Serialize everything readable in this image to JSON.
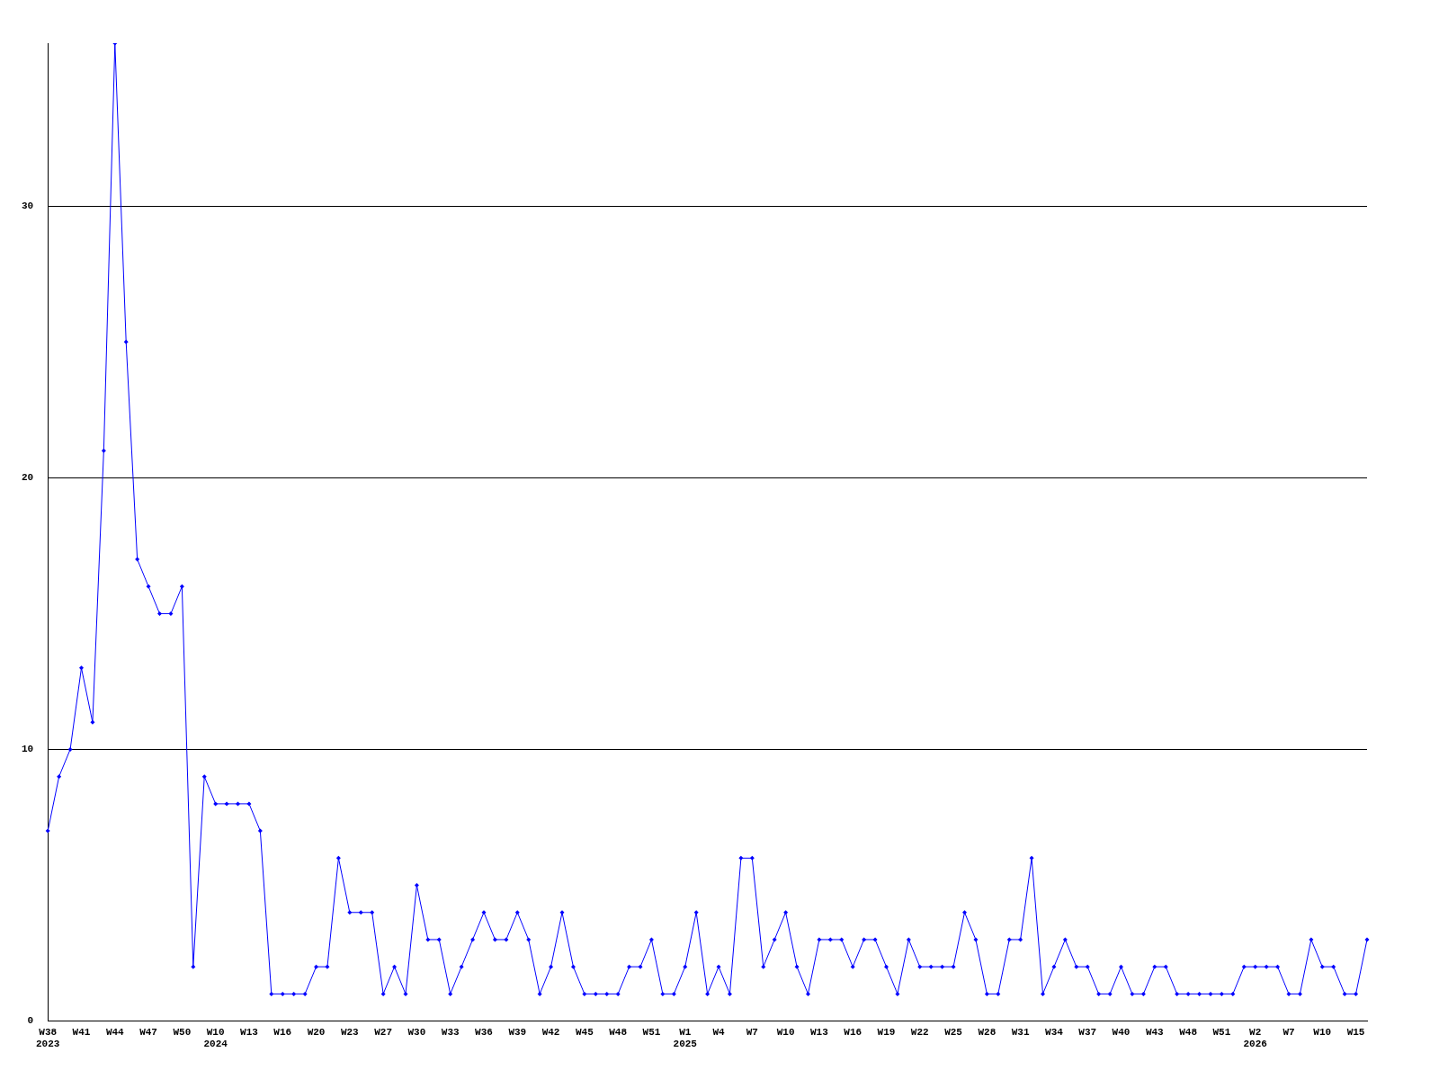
{
  "chart_data": {
    "type": "line",
    "categories": [
      "W38\n2023",
      null,
      null,
      "W41",
      null,
      null,
      "W44",
      null,
      null,
      "W47",
      null,
      null,
      "W50",
      null,
      null,
      "W10\n2024",
      null,
      null,
      "W13",
      null,
      null,
      "W16",
      null,
      null,
      "W20",
      null,
      null,
      "W23",
      null,
      null,
      "W27",
      null,
      null,
      "W30",
      null,
      null,
      "W33",
      null,
      null,
      "W36",
      null,
      null,
      "W39",
      null,
      null,
      "W42",
      null,
      null,
      "W45",
      null,
      null,
      "W48",
      null,
      null,
      "W51",
      null,
      null,
      "W1\n2025",
      null,
      null,
      "W4",
      null,
      null,
      "W7",
      null,
      null,
      "W10",
      null,
      null,
      "W13",
      null,
      null,
      "W16",
      null,
      null,
      "W19",
      null,
      null,
      "W22",
      null,
      null,
      "W25",
      null,
      null,
      "W28",
      null,
      null,
      "W31",
      null,
      null,
      "W34",
      null,
      null,
      "W37",
      null,
      null,
      "W40",
      null,
      null,
      "W43",
      null,
      null,
      "W48",
      null,
      null,
      "W51",
      null,
      null,
      "W2\n2026",
      null,
      null,
      "W7",
      null,
      null,
      "W10",
      null,
      null,
      "W15",
      null
    ],
    "series": [
      {
        "color": "#0000ff",
        "values": [
          7,
          9,
          10,
          13,
          11,
          21,
          36,
          25,
          17,
          16,
          15,
          15,
          16,
          2,
          9,
          8,
          8,
          8,
          8,
          7,
          1,
          1,
          1,
          1,
          2,
          2,
          6,
          4,
          4,
          4,
          1,
          2,
          1,
          5,
          3,
          3,
          1,
          2,
          3,
          4,
          3,
          3,
          4,
          3,
          1,
          2,
          4,
          2,
          1,
          1,
          1,
          1,
          2,
          2,
          3,
          1,
          1,
          2,
          4,
          1,
          2,
          1,
          6,
          6,
          2,
          3,
          4,
          2,
          1,
          3,
          3,
          3,
          2,
          3,
          3,
          2,
          1,
          3,
          2,
          2,
          2,
          2,
          4,
          3,
          1,
          1,
          3,
          3,
          6,
          1,
          2,
          3,
          2,
          2,
          1,
          1,
          2,
          1,
          1,
          2,
          2,
          1,
          1,
          1,
          1,
          1,
          1,
          2,
          2,
          2,
          2,
          1,
          1,
          3,
          2,
          2,
          1,
          1,
          3
        ]
      }
    ],
    "ylim": [
      0,
      36
    ],
    "yticks": [
      0,
      10,
      20,
      30
    ],
    "grid": "y",
    "legend": false,
    "marker": "diamond",
    "line_style": "solid"
  }
}
